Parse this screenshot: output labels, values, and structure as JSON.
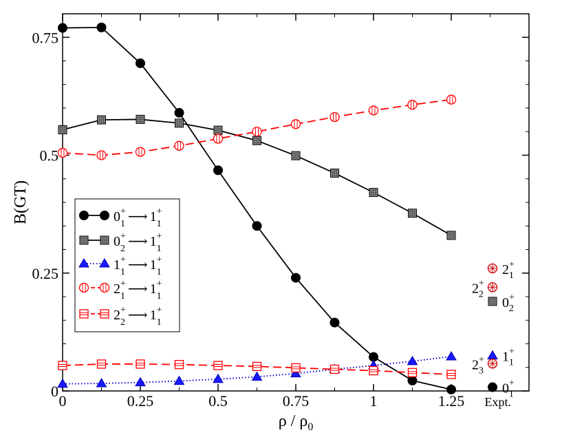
{
  "chart_data": {
    "type": "line",
    "title": "",
    "xlabel": "ρ / ρ",
    "xlabel_sub": "0",
    "ylabel": "B(GT)",
    "xlim": [
      0,
      1.5
    ],
    "ylim": [
      0,
      0.8
    ],
    "x_ticks": [
      {
        "value": 0,
        "label": "0"
      },
      {
        "value": 0.25,
        "label": "0.25"
      },
      {
        "value": 0.5,
        "label": "0.5"
      },
      {
        "value": 0.75,
        "label": "0.75"
      },
      {
        "value": 1,
        "label": "1"
      },
      {
        "value": 1.25,
        "label": "1.25"
      },
      {
        "value": 1.4,
        "label": "Expt."
      }
    ],
    "y_ticks": [
      {
        "value": 0,
        "label": "0"
      },
      {
        "value": 0.25,
        "label": "0.25"
      },
      {
        "value": 0.5,
        "label": "0.5"
      },
      {
        "value": 0.75,
        "label": "0.75"
      }
    ],
    "x": [
      0,
      0.125,
      0.25,
      0.375,
      0.5,
      0.625,
      0.75,
      0.875,
      1,
      1.125,
      1.25
    ],
    "series": [
      {
        "name": "0_1^+ → 1_1^+",
        "label": {
          "a": "0",
          "as": "1",
          "b": "1",
          "bs": "1"
        },
        "color": "#000000",
        "dash": "",
        "marker": "circle",
        "fill": "#000000",
        "values": [
          0.77,
          0.771,
          0.695,
          0.59,
          0.468,
          0.35,
          0.24,
          0.145,
          0.072,
          0.022,
          0.003
        ]
      },
      {
        "name": "0_2^+ → 1_1^+",
        "label": {
          "a": "0",
          "as": "2",
          "b": "1",
          "bs": "1"
        },
        "color": "#000000",
        "dash": "",
        "marker": "square",
        "fill": "#8a8a8a",
        "values": [
          0.554,
          0.575,
          0.576,
          0.568,
          0.553,
          0.531,
          0.499,
          0.462,
          0.421,
          0.377,
          0.33
        ]
      },
      {
        "name": "1_1^+ → 1_1^+",
        "label": {
          "a": "1",
          "as": "1",
          "b": "1",
          "bs": "1"
        },
        "color": "#0000cc",
        "dash": "1.5,3",
        "marker": "triangle",
        "fill": "#1a1aff",
        "values": [
          0.015,
          0.016,
          0.018,
          0.021,
          0.025,
          0.03,
          0.037,
          0.046,
          0.054,
          0.063,
          0.073
        ]
      },
      {
        "name": "2_1^+ → 1_1^+",
        "label": {
          "a": "2",
          "as": "1",
          "b": "1",
          "bs": "1"
        },
        "color": "#ff0000",
        "dash": "12,6",
        "marker": "circle-open",
        "fill": "#ffffff",
        "values": [
          0.505,
          0.5,
          0.507,
          0.52,
          0.535,
          0.55,
          0.566,
          0.581,
          0.595,
          0.607,
          0.618
        ]
      },
      {
        "name": "2_2^+ → 1_1^+",
        "label": {
          "a": "2",
          "as": "2",
          "b": "1",
          "bs": "1"
        },
        "color": "#ff0000",
        "dash": "12,6",
        "marker": "square-open",
        "fill": "#ffffff",
        "values": [
          0.054,
          0.057,
          0.057,
          0.056,
          0.054,
          0.052,
          0.049,
          0.046,
          0.043,
          0.039,
          0.035
        ]
      }
    ],
    "experiment": {
      "x": 1.4,
      "points": [
        {
          "name": "2_1^+",
          "label": "2",
          "sub": "1",
          "sup": "+",
          "y": 0.26,
          "marker": "circle-cross",
          "side": "right"
        },
        {
          "name": "2_2^+",
          "label": "2",
          "sub": "2",
          "sup": "+",
          "y": 0.22,
          "marker": "circle-cross",
          "side": "left"
        },
        {
          "name": "0_2^+",
          "label": "0",
          "sub": "2",
          "sup": "+",
          "y": 0.19,
          "marker": "square",
          "side": "right"
        },
        {
          "name": "1_1^+",
          "label": "1",
          "sub": "1",
          "sup": "+",
          "y": 0.075,
          "marker": "triangle",
          "side": "right"
        },
        {
          "name": "2_3^+",
          "label": "2",
          "sub": "3",
          "sup": "+",
          "y": 0.058,
          "marker": "circle-cross",
          "side": "left"
        },
        {
          "name": "0_1^+",
          "label": "0",
          "sub": "1",
          "sup": "+",
          "y": 0.008,
          "marker": "circle",
          "side": "right"
        }
      ]
    },
    "legend": {
      "position": "left-middle"
    }
  }
}
